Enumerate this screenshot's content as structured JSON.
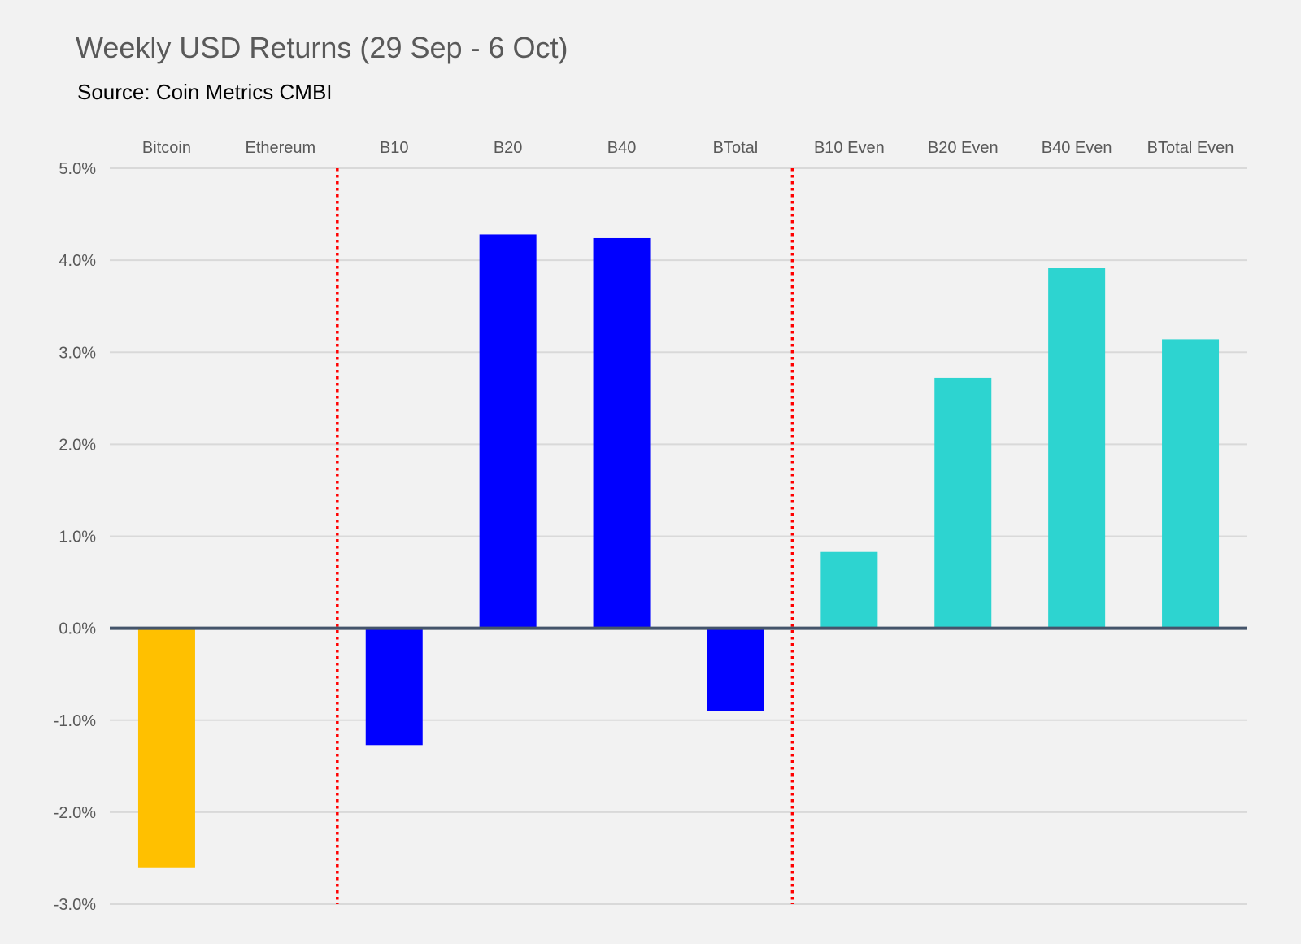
{
  "chart_data": {
    "type": "bar",
    "title": "Weekly USD Returns (29 Sep - 6 Oct)",
    "subtitle": "Source: Coin Metrics CMBI",
    "categories": [
      "Bitcoin",
      "Ethereum",
      "B10",
      "B20",
      "B40",
      "BTotal",
      "B10 Even",
      "B20 Even",
      "B40 Even",
      "BTotal Even"
    ],
    "values": [
      -2.6,
      0.0,
      -1.27,
      4.28,
      4.24,
      -0.9,
      0.83,
      2.72,
      3.92,
      3.14
    ],
    "bar_colors": [
      "#ffc000",
      "#ffc000",
      "#0000ff",
      "#0000ff",
      "#0000ff",
      "#0000ff",
      "#2dd4d0",
      "#2dd4d0",
      "#2dd4d0",
      "#2dd4d0"
    ],
    "ylim": [
      -3.0,
      5.0
    ],
    "yticks": [
      5.0,
      4.0,
      3.0,
      2.0,
      1.0,
      0.0,
      -1.0,
      -2.0,
      -3.0
    ],
    "ytick_labels": [
      "5.0%",
      "4.0%",
      "3.0%",
      "2.0%",
      "1.0%",
      "0.0%",
      "-1.0%",
      "-2.0%",
      "-3.0%"
    ],
    "category_labels_position": "top",
    "separators_after_category": [
      "Ethereum",
      "BTotal"
    ],
    "separator_color": "#ff0000",
    "grid": true,
    "grid_color": "#d9d9d9",
    "zero_line_color": "#44546a",
    "xlabel": "",
    "ylabel": ""
  }
}
